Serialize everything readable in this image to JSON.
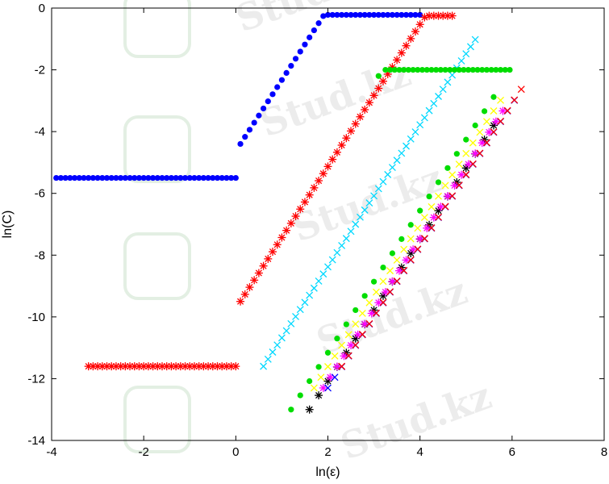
{
  "chart_data": {
    "type": "scatter",
    "title": "",
    "xlabel": "ln(ε)",
    "ylabel": "ln(C)",
    "xlim": [
      -4,
      8
    ],
    "ylim": [
      -14,
      0
    ],
    "xticks": [
      -4,
      -2,
      0,
      2,
      4,
      6,
      8
    ],
    "yticks": [
      0,
      -2,
      -4,
      -6,
      -8,
      -10,
      -12,
      -14
    ],
    "xtick_labels": [
      "-4",
      "-2",
      "0",
      "2",
      "4",
      "6",
      "8"
    ],
    "ytick_labels": [
      "0",
      "-2",
      "-4",
      "-6",
      "-8",
      "-10",
      "-12",
      "-14"
    ],
    "grid": false,
    "legend": "none",
    "watermark": "Stud.kz",
    "series": [
      {
        "marker": "dot",
        "color": "#0000ff",
        "plateau": -5.5,
        "sat": -0.22,
        "xs": -3.9,
        "xb": 0.0,
        "xt": 4.0,
        "x0": 0.1,
        "y0": -4.4,
        "step": 0.1
      },
      {
        "marker": "star",
        "color": "#ff0000",
        "plateau": -11.6,
        "sat": -0.25,
        "xs": -3.2,
        "xb": 0.0,
        "xt": 4.7,
        "x0": 0.1,
        "y0": -9.5,
        "step": 0.1
      },
      {
        "marker": "x",
        "color": "#00d8ff",
        "plateau": null,
        "sat": -0.6,
        "xs": null,
        "xb": null,
        "xt": 5.2,
        "x0": 0.6,
        "y0": -11.6,
        "step": 0.1
      },
      {
        "marker": "dot",
        "color": "#00dd00",
        "plateau": null,
        "sat": -1.0,
        "xs": null,
        "xb": null,
        "xt": 5.6,
        "x0": 1.2,
        "y0": -13.0,
        "step": 0.2
      },
      {
        "marker": "star",
        "color": "#000000",
        "plateau": null,
        "sat": -1.2,
        "xs": null,
        "xb": null,
        "xt": 5.7,
        "x0": 1.6,
        "y0": -13.0,
        "step": 0.2
      },
      {
        "marker": "x",
        "color": "#ffff00",
        "plateau": null,
        "sat": -1.4,
        "xs": null,
        "xb": null,
        "xt": 5.8,
        "x0": 1.7,
        "y0": -12.3,
        "step": 0.15
      },
      {
        "marker": "star",
        "color": "#ff00ff",
        "plateau": null,
        "sat": -1.6,
        "xs": null,
        "xb": null,
        "xt": 5.9,
        "x0": 1.9,
        "y0": -12.3,
        "step": 0.15
      },
      {
        "marker": "x",
        "color": "#0000ff",
        "plateau": null,
        "sat": -1.8,
        "xs": null,
        "xb": null,
        "xt": 6.1,
        "x0": 2.0,
        "y0": -12.3,
        "step": 0.15
      },
      {
        "marker": "x",
        "color": "#ff0000",
        "plateau": null,
        "sat": -2.2,
        "xs": null,
        "xb": null,
        "xt": 6.3,
        "x0": 2.3,
        "y0": -11.6,
        "step": 0.15
      },
      {
        "marker": "dot",
        "color": "#00dd00",
        "plateau": null,
        "sat": -2.0,
        "xs": null,
        "xb": null,
        "xt": 6.0,
        "x0": 3.1,
        "y0": -2.2,
        "step": 0.15
      }
    ]
  }
}
